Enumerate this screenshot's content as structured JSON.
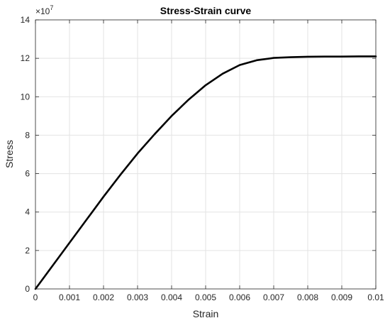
{
  "chart_data": {
    "type": "line",
    "title": "Stress-Strain curve",
    "xlabel": "Strain",
    "ylabel": "Stress",
    "xlim": [
      0,
      0.01
    ],
    "ylim": [
      0,
      14
    ],
    "y_multiplier": "×10",
    "y_multiplier_exponent": "7",
    "grid": true,
    "x_ticks": [
      "0",
      "0.001",
      "0.002",
      "0.003",
      "0.004",
      "0.005",
      "0.006",
      "0.007",
      "0.008",
      "0.009",
      "0.01"
    ],
    "y_ticks": [
      "0",
      "2",
      "4",
      "6",
      "8",
      "10",
      "12",
      "14"
    ],
    "series": [
      {
        "color": "#000000",
        "x": [
          0,
          0.0005,
          0.001,
          0.0015,
          0.002,
          0.0025,
          0.003,
          0.0035,
          0.004,
          0.0045,
          0.005,
          0.0055,
          0.006,
          0.0065,
          0.007,
          0.0075,
          0.008,
          0.0085,
          0.009,
          0.0095,
          0.01
        ],
        "y": [
          0,
          1.2,
          2.4,
          3.6,
          4.8,
          5.95,
          7.05,
          8.05,
          9.0,
          9.85,
          10.6,
          11.2,
          11.65,
          11.9,
          12.02,
          12.06,
          12.08,
          12.09,
          12.09,
          12.1,
          12.1
        ]
      }
    ]
  }
}
